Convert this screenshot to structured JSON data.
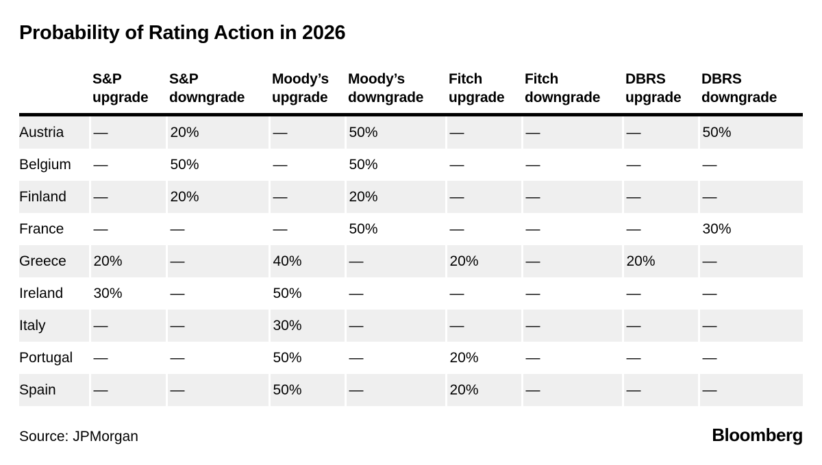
{
  "chart_data": {
    "type": "table",
    "title": "Probability of Rating Action in 2026",
    "columns": [
      {
        "label": "S&P upgrade",
        "line1": "S&P",
        "line2": "upgrade"
      },
      {
        "label": "S&P downgrade",
        "line1": "S&P",
        "line2": "downgrade"
      },
      {
        "label": "Moody’s upgrade",
        "line1": "Moody’s",
        "line2": "upgrade"
      },
      {
        "label": "Moody’s downgrade",
        "line1": "Moody’s",
        "line2": "downgrade"
      },
      {
        "label": "Fitch upgrade",
        "line1": "Fitch",
        "line2": "upgrade"
      },
      {
        "label": "Fitch downgrade",
        "line1": "Fitch",
        "line2": "downgrade"
      },
      {
        "label": "DBRS upgrade",
        "line1": "DBRS",
        "line2": "upgrade"
      },
      {
        "label": "DBRS downgrade",
        "line1": "DBRS",
        "line2": "downgrade"
      }
    ],
    "rows": [
      {
        "country": "Austria",
        "values": [
          "—",
          "20%",
          "—",
          "50%",
          "—",
          "—",
          "—",
          "50%"
        ]
      },
      {
        "country": "Belgium",
        "values": [
          "—",
          "50%",
          "—",
          "50%",
          "—",
          "—",
          "—",
          "—"
        ]
      },
      {
        "country": "Finland",
        "values": [
          "—",
          "20%",
          "—",
          "20%",
          "—",
          "—",
          "—",
          "—"
        ]
      },
      {
        "country": "France",
        "values": [
          "—",
          "—",
          "—",
          "50%",
          "—",
          "—",
          "—",
          "30%"
        ]
      },
      {
        "country": "Greece",
        "values": [
          "20%",
          "—",
          "40%",
          "—",
          "20%",
          "—",
          "20%",
          "—"
        ]
      },
      {
        "country": "Ireland",
        "values": [
          "30%",
          "—",
          "50%",
          "—",
          "—",
          "—",
          "—",
          "—"
        ]
      },
      {
        "country": "Italy",
        "values": [
          "—",
          "—",
          "30%",
          "—",
          "—",
          "—",
          "—",
          "—"
        ]
      },
      {
        "country": "Portugal",
        "values": [
          "—",
          "—",
          "50%",
          "—",
          "20%",
          "—",
          "—",
          "—"
        ]
      },
      {
        "country": "Spain",
        "values": [
          "—",
          "—",
          "50%",
          "—",
          "20%",
          "—",
          "—",
          "—"
        ]
      }
    ],
    "layout_hints": {
      "zebra_stripes": true,
      "first_row_striped": true,
      "header_rule": "thick-black"
    }
  },
  "footer": {
    "source": "Source: JPMorgan",
    "brand": "Bloomberg"
  },
  "colors": {
    "background": "#ffffff",
    "text": "#000000",
    "stripe": "#efefef",
    "header_rule": "#000000"
  }
}
